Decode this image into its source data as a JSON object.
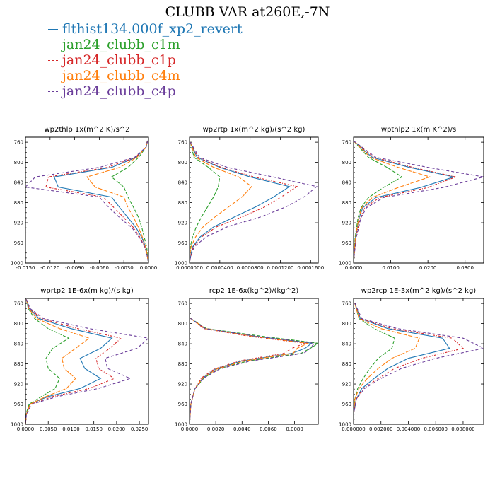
{
  "figure_title": "CLUBB VAR at260E,-7N",
  "legend": [
    {
      "name": "flthist134.000f_xp2_revert",
      "color": "#1f77b4",
      "dashed": false
    },
    {
      "name": "jan24_clubb_c1m",
      "color": "#2ca02c",
      "dashed": true
    },
    {
      "name": "jan24_clubb_c1p",
      "color": "#d62728",
      "dashed": true
    },
    {
      "name": "jan24_clubb_c4m",
      "color": "#ff7f0e",
      "dashed": true
    },
    {
      "name": "jan24_clubb_c4p",
      "color": "#6a3d9a",
      "dashed": true
    }
  ],
  "chart_data": [
    {
      "type": "line",
      "title": "wp2thlp   1x(m^2 K)/s^2",
      "xlim": [
        -0.015,
        0.0
      ],
      "ylim": [
        1000,
        750
      ],
      "xticks": [
        -0.015,
        -0.012,
        -0.009,
        -0.006,
        -0.003,
        0.0
      ],
      "xtick_labels": [
        "-0.0150",
        "-0.0120",
        "-0.0090",
        "-0.0060",
        "-0.0030",
        "0.0000"
      ],
      "yticks": [
        760,
        800,
        840,
        880,
        920,
        960,
        1000
      ],
      "y": [
        757,
        770,
        790,
        810,
        829,
        849,
        869,
        890,
        910,
        930,
        950,
        970,
        990,
        1000
      ],
      "series": [
        {
          "name": "flthist134.000f_xp2_revert",
          "x": [
            -0.0001,
            -0.0003,
            -0.0015,
            -0.0045,
            -0.0115,
            -0.011,
            -0.0045,
            -0.0035,
            -0.0025,
            -0.0015,
            -0.0008,
            -0.0003,
            -0.0001,
            0
          ]
        },
        {
          "name": "jan24_clubb_c1m",
          "x": [
            -0.0001,
            -0.0003,
            -0.0012,
            -0.0025,
            -0.0045,
            -0.003,
            -0.0025,
            -0.0018,
            -0.0012,
            -0.0008,
            -0.0005,
            -0.0002,
            -0.0001,
            0
          ]
        },
        {
          "name": "jan24_clubb_c1p",
          "x": [
            -0.0001,
            -0.0003,
            -0.0016,
            -0.005,
            -0.0122,
            -0.0125,
            -0.0055,
            -0.0042,
            -0.003,
            -0.0018,
            -0.001,
            -0.0004,
            -0.0001,
            0
          ]
        },
        {
          "name": "jan24_clubb_c4m",
          "x": [
            -0.0001,
            -0.0003,
            -0.0014,
            -0.0035,
            -0.0075,
            -0.0065,
            -0.003,
            -0.0025,
            -0.0018,
            -0.0012,
            -0.0007,
            -0.0003,
            -0.0001,
            0
          ]
        },
        {
          "name": "jan24_clubb_c4p",
          "x": [
            -0.0001,
            -0.0003,
            -0.0017,
            -0.006,
            -0.0138,
            -0.015,
            -0.006,
            -0.0048,
            -0.0035,
            -0.002,
            -0.0011,
            -0.0004,
            -0.0001,
            0
          ]
        }
      ]
    },
    {
      "type": "line",
      "title": "wp2rtp   1x(m^2 kg)/(s^2 kg)",
      "xlim": [
        0.0,
        0.00017
      ],
      "ylim": [
        1000,
        750
      ],
      "xticks": [
        0.0,
        4e-05,
        8e-05,
        0.00012,
        0.00016
      ],
      "xtick_labels": [
        "0.0000000",
        "0.0000400",
        "0.0000800",
        "0.0001200",
        "0.0001600"
      ],
      "yticks": [
        760,
        800,
        840,
        880,
        920,
        960,
        1000
      ],
      "y": [
        760,
        790,
        810,
        829,
        848,
        868,
        888,
        908,
        928,
        948,
        968,
        990,
        1000
      ],
      "series": [
        {
          "name": "flthist134.000f_xp2_revert",
          "x": [
            1e-06,
            1e-05,
            4e-05,
            8e-05,
            0.000132,
            0.000112,
            8.8e-05,
            6e-05,
            3.2e-05,
            1.4e-05,
            4e-06,
            1e-06,
            0
          ]
        },
        {
          "name": "jan24_clubb_c1m",
          "x": [
            1e-06,
            6e-06,
            2.5e-05,
            4e-05,
            3.8e-05,
            3.2e-05,
            2.4e-05,
            1.6e-05,
            9e-06,
            4e-06,
            1e-06,
            0,
            0
          ]
        },
        {
          "name": "jan24_clubb_c1p",
          "x": [
            1e-06,
            1.1e-05,
            4.2e-05,
            8.5e-05,
            0.000142,
            0.000122,
            0.0001,
            7e-05,
            3.6e-05,
            1.6e-05,
            5e-06,
            1e-06,
            0
          ]
        },
        {
          "name": "jan24_clubb_c4m",
          "x": [
            1e-06,
            8e-06,
            3.2e-05,
            6.5e-05,
            8.2e-05,
            7e-05,
            5.2e-05,
            3.4e-05,
            1.8e-05,
            8e-06,
            2e-06,
            0,
            0
          ]
        },
        {
          "name": "jan24_clubb_c4p",
          "x": [
            1e-06,
            1.3e-05,
            5e-05,
            0.00011,
            0.000168,
            0.000152,
            0.000128,
            9.5e-05,
            5e-05,
            2.2e-05,
            6e-06,
            1e-06,
            0
          ]
        }
      ]
    },
    {
      "type": "line",
      "title": "wpthlp2   1x(m K^2)/s",
      "xlim": [
        0.0,
        0.035
      ],
      "ylim": [
        1000,
        750
      ],
      "xticks": [
        0.0,
        0.01,
        0.02,
        0.03
      ],
      "xtick_labels": [
        "0.0000",
        "0.0100",
        "0.0200",
        "0.0300"
      ],
      "yticks": [
        760,
        800,
        840,
        880,
        920,
        960,
        1000
      ],
      "y": [
        758,
        790,
        810,
        829,
        850,
        870,
        890,
        910,
        950,
        990,
        1000
      ],
      "series": [
        {
          "name": "flthist134.000f_xp2_revert",
          "x": [
            0.0001,
            0.005,
            0.015,
            0.027,
            0.018,
            0.006,
            0.0025,
            0.0015,
            0.0005,
            0.0001,
            0
          ]
        },
        {
          "name": "jan24_clubb_c1m",
          "x": [
            0.0001,
            0.004,
            0.009,
            0.013,
            0.008,
            0.004,
            0.002,
            0.0012,
            0.0004,
            0.0001,
            0
          ]
        },
        {
          "name": "jan24_clubb_c1p",
          "x": [
            0.0001,
            0.0055,
            0.016,
            0.0275,
            0.02,
            0.007,
            0.003,
            0.0018,
            0.0006,
            0.0001,
            0
          ]
        },
        {
          "name": "jan24_clubb_c4m",
          "x": [
            0.0001,
            0.0045,
            0.012,
            0.0205,
            0.012,
            0.005,
            0.0022,
            0.0014,
            0.0005,
            0.0001,
            0
          ]
        },
        {
          "name": "jan24_clubb_c4p",
          "x": [
            0.0001,
            0.006,
            0.02,
            0.035,
            0.024,
            0.008,
            0.0035,
            0.002,
            0.0007,
            0.0001,
            0
          ]
        }
      ]
    },
    {
      "type": "line",
      "title": "wprtp2   1E-6x(m kg)/(s kg)",
      "xlim": [
        0.0,
        0.027
      ],
      "ylim": [
        1000,
        750
      ],
      "xticks": [
        0.0,
        0.005,
        0.01,
        0.015,
        0.02,
        0.025
      ],
      "xtick_labels": [
        "0.0000",
        "0.0050",
        "0.0100",
        "0.0150",
        "0.0200",
        "0.0250"
      ],
      "yticks": [
        760,
        800,
        840,
        880,
        920,
        960,
        1000
      ],
      "y": [
        752,
        770,
        790,
        810,
        829,
        849,
        869,
        889,
        909,
        929,
        945,
        960,
        980,
        1000
      ],
      "series": [
        {
          "name": "flthist134.000f_xp2_revert",
          "x": [
            0.0002,
            0.0008,
            0.003,
            0.01,
            0.019,
            0.0165,
            0.012,
            0.013,
            0.0165,
            0.012,
            0.005,
            0.001,
            0.0002,
            0
          ]
        },
        {
          "name": "jan24_clubb_c1m",
          "x": [
            0.0002,
            0.0006,
            0.002,
            0.005,
            0.0095,
            0.006,
            0.0045,
            0.005,
            0.0075,
            0.0065,
            0.0035,
            0.0008,
            0.0001,
            0
          ]
        },
        {
          "name": "jan24_clubb_c1p",
          "x": [
            0.0002,
            0.0009,
            0.0035,
            0.0115,
            0.021,
            0.0185,
            0.0155,
            0.016,
            0.0195,
            0.014,
            0.006,
            0.0012,
            0.0002,
            0
          ]
        },
        {
          "name": "jan24_clubb_c4m",
          "x": [
            0.0002,
            0.0007,
            0.0025,
            0.0075,
            0.014,
            0.011,
            0.008,
            0.0085,
            0.011,
            0.009,
            0.0045,
            0.001,
            0.0002,
            0
          ]
        },
        {
          "name": "jan24_clubb_c4p",
          "x": [
            0.0002,
            0.001,
            0.004,
            0.014,
            0.027,
            0.0245,
            0.0175,
            0.018,
            0.023,
            0.016,
            0.007,
            0.0014,
            0.0002,
            0
          ]
        }
      ]
    },
    {
      "type": "line",
      "title": "rcp2   1E-6x(kg^2)/(kg^2)",
      "xlim": [
        0.0,
        0.0098
      ],
      "ylim": [
        1000,
        750
      ],
      "xticks": [
        0.0,
        0.002,
        0.004,
        0.006,
        0.008
      ],
      "xtick_labels": [
        "0.0000",
        "0.0020",
        "0.0040",
        "0.0060",
        "0.0080"
      ],
      "yticks": [
        760,
        800,
        840,
        880,
        920,
        960,
        1000
      ],
      "y": [
        790,
        810,
        825,
        839,
        849,
        859,
        874,
        890,
        908,
        930,
        960,
        1000
      ],
      "series": [
        {
          "name": "flthist134.000f_xp2_revert",
          "x": [
            0.0001,
            0.0012,
            0.005,
            0.0093,
            0.0088,
            0.0078,
            0.004,
            0.002,
            0.001,
            0.0004,
            0.0001,
            0
          ]
        },
        {
          "name": "jan24_clubb_c1m",
          "x": [
            0.0001,
            0.0013,
            0.0055,
            0.0098,
            0.0092,
            0.0085,
            0.0045,
            0.0022,
            0.0011,
            0.0004,
            0.0001,
            0
          ]
        },
        {
          "name": "jan24_clubb_c1p",
          "x": [
            0.0001,
            0.0011,
            0.0045,
            0.0088,
            0.0078,
            0.0072,
            0.0038,
            0.0019,
            0.0009,
            0.0004,
            0.0001,
            0
          ]
        },
        {
          "name": "jan24_clubb_c4m",
          "x": [
            0.0001,
            0.0012,
            0.0048,
            0.009,
            0.0082,
            0.0079,
            0.0042,
            0.0021,
            0.001,
            0.0004,
            0.0001,
            0
          ]
        },
        {
          "name": "jan24_clubb_c4p",
          "x": [
            0.0001,
            0.0012,
            0.005,
            0.0095,
            0.0092,
            0.0087,
            0.0047,
            0.0023,
            0.0011,
            0.0004,
            0.0001,
            0
          ]
        }
      ]
    },
    {
      "type": "line",
      "title": "wp2rcp   1E-3x(m^2 kg)/(s^2 kg)",
      "xlim": [
        0.0,
        0.0095
      ],
      "ylim": [
        1000,
        750
      ],
      "xticks": [
        0.0,
        0.002,
        0.004,
        0.006,
        0.008
      ],
      "xtick_labels": [
        "0.000000",
        "0.002000",
        "0.004000",
        "0.006000",
        "0.008000"
      ],
      "yticks": [
        760,
        800,
        840,
        880,
        920,
        960,
        1000
      ],
      "y": [
        760,
        790,
        810,
        829,
        849,
        869,
        889,
        909,
        929,
        950,
        980,
        1000
      ],
      "series": [
        {
          "name": "flthist134.000f_xp2_revert",
          "x": [
            0.0001,
            0.0005,
            0.0025,
            0.0065,
            0.007,
            0.004,
            0.0025,
            0.0015,
            0.0006,
            0.0002,
            0,
            0
          ]
        },
        {
          "name": "jan24_clubb_c1m",
          "x": [
            0.0001,
            0.0004,
            0.0015,
            0.003,
            0.0028,
            0.0018,
            0.0012,
            0.0007,
            0.0003,
            0.0001,
            0,
            0
          ]
        },
        {
          "name": "jan24_clubb_c1p",
          "x": [
            0.0001,
            0.0005,
            0.0028,
            0.0072,
            0.008,
            0.005,
            0.003,
            0.0018,
            0.0007,
            0.0002,
            0,
            0
          ]
        },
        {
          "name": "jan24_clubb_c4m",
          "x": [
            0.0001,
            0.0004,
            0.002,
            0.0048,
            0.0045,
            0.0028,
            0.0018,
            0.001,
            0.0004,
            0.0001,
            0,
            0
          ]
        },
        {
          "name": "jan24_clubb_c4p",
          "x": [
            0.0001,
            0.0006,
            0.0032,
            0.008,
            0.0095,
            0.006,
            0.0035,
            0.002,
            0.0008,
            0.0002,
            0,
            0
          ]
        }
      ]
    }
  ]
}
